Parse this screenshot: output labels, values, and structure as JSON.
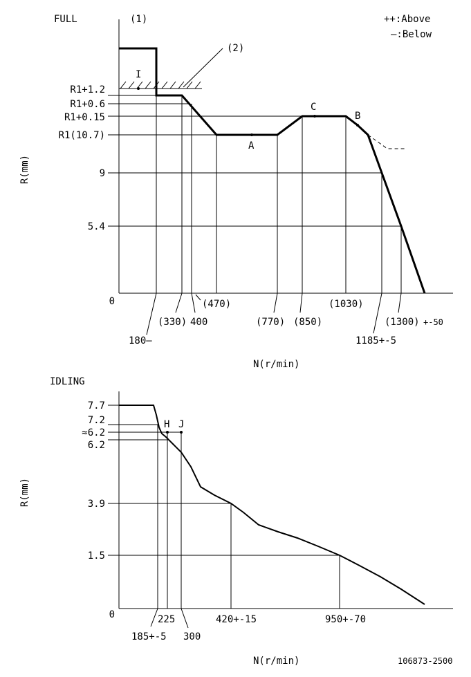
{
  "full": {
    "title": "FULL",
    "note1": "(1)",
    "note2": "(2)",
    "legend_above": "++:Above",
    "legend_below": "—:Below",
    "y_axis_label": "R(mm)",
    "x_axis_label": "N(r/min)",
    "zero": "0",
    "y_ticks": [
      "R1+1.2",
      "R1+0.6",
      "R1+0.15",
      "R1(10.7)",
      "9",
      "5.4"
    ],
    "x_ticks": [
      "180—",
      "(330)",
      "400",
      "(470)",
      "(770)",
      "(850)",
      "(1030)",
      "1185+-5",
      "(1300)",
      "+-50"
    ],
    "points": [
      "I",
      "A",
      "B",
      "C"
    ]
  },
  "idling": {
    "title": "IDLING",
    "y_axis_label": "R(mm)",
    "x_axis_label": "N(r/min)",
    "zero": "0",
    "y_ticks": [
      "7.7",
      "7.2",
      "≈6.2",
      "6.2",
      "3.9",
      "1.5"
    ],
    "x_ticks": [
      "185+-5",
      "225",
      "300",
      "420+-15",
      "950+-70"
    ],
    "points": [
      "H",
      "J"
    ]
  },
  "drawing_number": "106873-2500"
}
